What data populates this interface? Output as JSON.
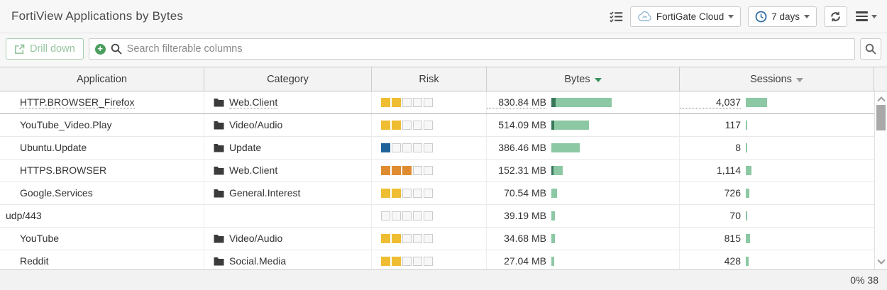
{
  "header": {
    "title": "FortiView Applications by Bytes",
    "source_dropdown": {
      "label": "FortiGate Cloud"
    },
    "time_dropdown": {
      "label": "7 days"
    }
  },
  "toolbar": {
    "drill_down_label": "Drill down",
    "search_placeholder": "Search filterable columns"
  },
  "statusbar": {
    "text": "0% 38"
  },
  "colors": {
    "risk_levels": {
      "1": "#1f639b",
      "2": "#efbd31",
      "3": "#df8c30"
    },
    "bar_light": "#8cc8a3",
    "bar_dark": "#38795b",
    "sort_active": "#3a915f"
  },
  "table": {
    "columns": [
      {
        "label": "Application",
        "sort": null
      },
      {
        "label": "Category",
        "sort": null
      },
      {
        "label": "Risk",
        "sort": null
      },
      {
        "label": "Bytes",
        "sort": "desc",
        "sort_active": true
      },
      {
        "label": "Sessions",
        "sort": "desc",
        "sort_active": false
      }
    ],
    "rows": [
      {
        "application": "HTTP.BROWSER_Firefox",
        "indented": true,
        "category": "Web.Client",
        "risk": 2,
        "bytes": "830.84 MB",
        "bytes_bar": 85,
        "bytes_bar_dark": 6,
        "sessions": "4,037",
        "sessions_bar": 30,
        "hovered": true
      },
      {
        "application": "YouTube_Video.Play",
        "indented": true,
        "category": "Video/Audio",
        "risk": 2,
        "bytes": "514.09 MB",
        "bytes_bar": 53,
        "bytes_bar_dark": 4,
        "sessions": "117",
        "sessions_bar": 2,
        "hovered": false
      },
      {
        "application": "Ubuntu.Update",
        "indented": true,
        "category": "Update",
        "risk": 1,
        "bytes": "386.46 MB",
        "bytes_bar": 40,
        "bytes_bar_dark": 0,
        "sessions": "8",
        "sessions_bar": 2,
        "hovered": false
      },
      {
        "application": "HTTPS.BROWSER",
        "indented": true,
        "category": "Web.Client",
        "risk": 3,
        "bytes": "152.31 MB",
        "bytes_bar": 16,
        "bytes_bar_dark": 3,
        "sessions": "1,114",
        "sessions_bar": 8,
        "hovered": false
      },
      {
        "application": "Google.Services",
        "indented": true,
        "category": "General.Interest",
        "risk": 2,
        "bytes": "70.54 MB",
        "bytes_bar": 8,
        "bytes_bar_dark": 0,
        "sessions": "726",
        "sessions_bar": 5,
        "hovered": false
      },
      {
        "application": "udp/443",
        "indented": false,
        "category": "",
        "risk": 0,
        "bytes": "39.19 MB",
        "bytes_bar": 5,
        "bytes_bar_dark": 0,
        "sessions": "70",
        "sessions_bar": 2,
        "hovered": false
      },
      {
        "application": "YouTube",
        "indented": true,
        "category": "Video/Audio",
        "risk": 2,
        "bytes": "34.68 MB",
        "bytes_bar": 5,
        "bytes_bar_dark": 0,
        "sessions": "815",
        "sessions_bar": 6,
        "hovered": false
      },
      {
        "application": "Reddit",
        "indented": true,
        "category": "Social.Media",
        "risk": 2,
        "bytes": "27.04 MB",
        "bytes_bar": 4,
        "bytes_bar_dark": 0,
        "sessions": "428",
        "sessions_bar": 4,
        "hovered": false
      }
    ]
  }
}
